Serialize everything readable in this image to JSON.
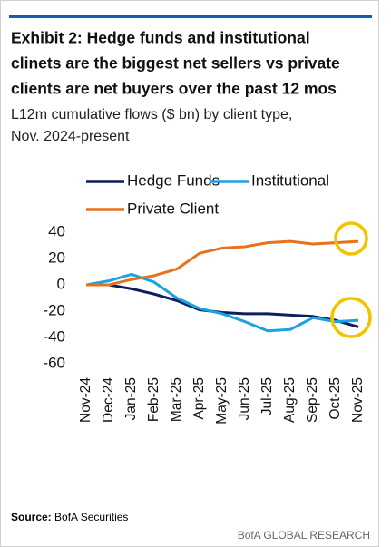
{
  "chart_data": {
    "type": "line",
    "title": [
      "Exhibit 2: Hedge funds and institutional",
      "clinets are the biggest net sellers vs private",
      "clients are net buyers over the past 12 mos"
    ],
    "subtitle": [
      "L12m cumulative flows ($ bn) by client type,",
      "Nov. 2024-present"
    ],
    "categories": [
      "Nov-24",
      "Dec-24",
      "Jan-25",
      "Feb-25",
      "Mar-25",
      "Apr-25",
      "May-25",
      "Jun-25",
      "Jul-25",
      "Aug-25",
      "Sep-25",
      "Oct-25",
      "Nov-25"
    ],
    "series": [
      {
        "name": "Hedge Funds",
        "color": "#0b1f5c",
        "values": [
          0,
          0,
          -3,
          -7,
          -12,
          -19,
          -21,
          -22,
          -22,
          -23,
          -24,
          -27,
          -32
        ]
      },
      {
        "name": "Institutional",
        "color": "#1aa3e0",
        "values": [
          0,
          3,
          8,
          2,
          -10,
          -18,
          -22,
          -28,
          -35,
          -34,
          -25,
          -28,
          -27
        ]
      },
      {
        "name": "Private Client",
        "color": "#e8711c",
        "values": [
          0,
          0,
          4,
          7,
          12,
          24,
          28,
          29,
          32,
          33,
          31,
          32,
          33
        ]
      }
    ],
    "ylim": [
      -60,
      40
    ],
    "yticks": [
      40,
      20,
      0,
      -20,
      -40,
      -60
    ],
    "grid": false,
    "source": {
      "label": "Source:",
      "text": "BofA Securities"
    },
    "footer": "BofA GLOBAL RESEARCH"
  }
}
